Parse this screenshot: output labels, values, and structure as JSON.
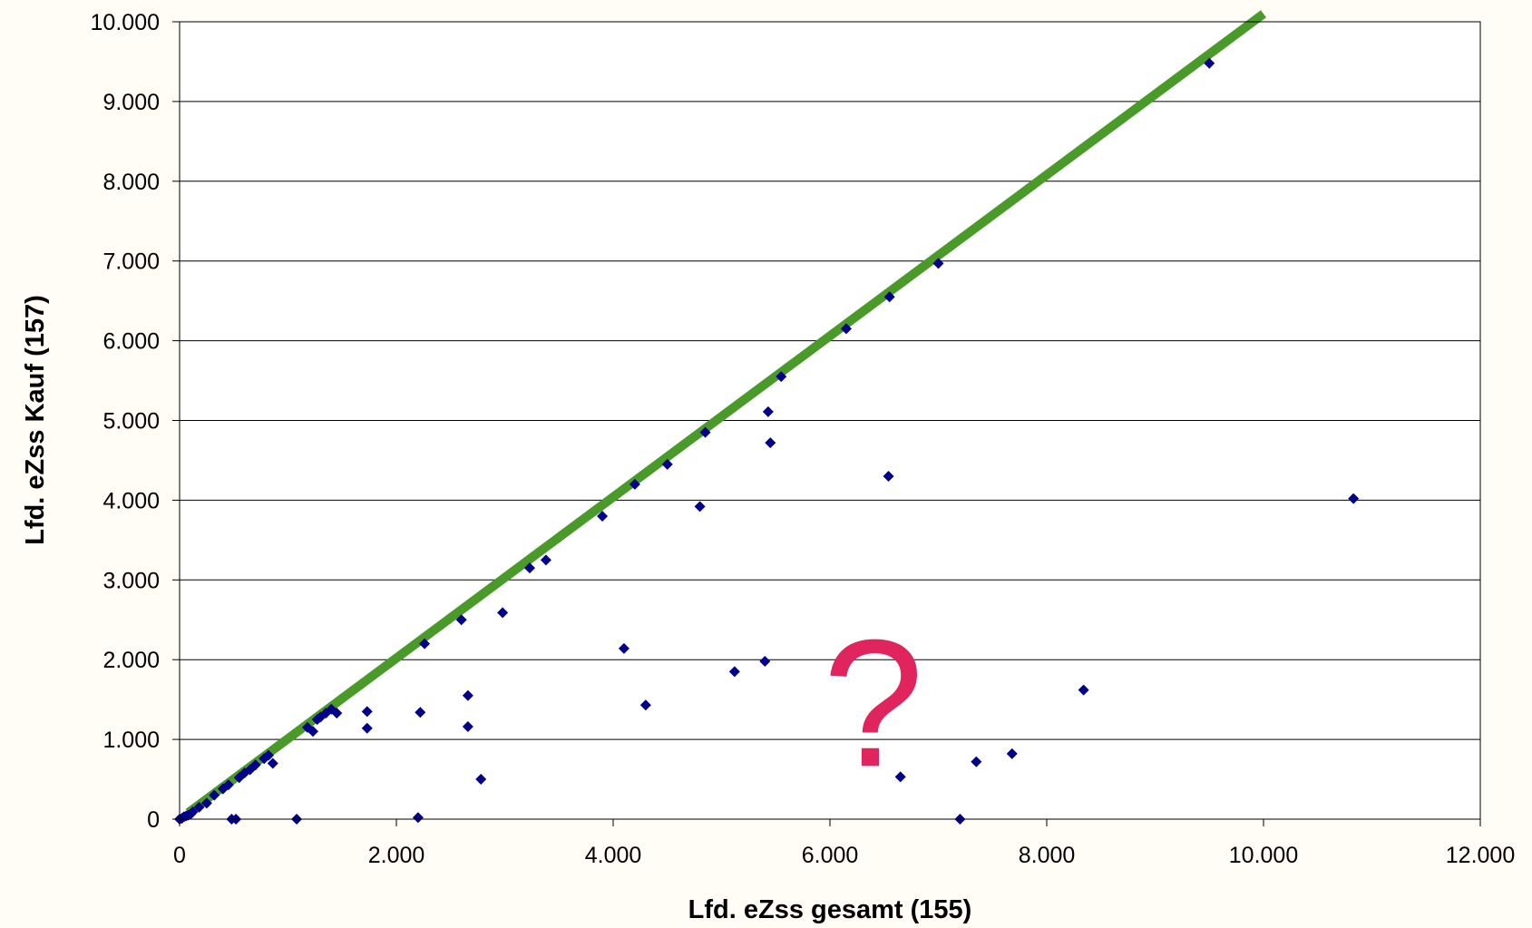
{
  "chart_data": {
    "type": "scatter",
    "xlabel": "Lfd. eZss gesamt (155)",
    "ylabel": "Lfd. eZss Kauf (157)",
    "xlim": [
      0,
      12000
    ],
    "ylim": [
      0,
      10000
    ],
    "x_ticks": [
      {
        "value": 0,
        "label": "0"
      },
      {
        "value": 2000,
        "label": "2.000"
      },
      {
        "value": 4000,
        "label": "4.000"
      },
      {
        "value": 6000,
        "label": "6.000"
      },
      {
        "value": 8000,
        "label": "8.000"
      },
      {
        "value": 10000,
        "label": "10.000"
      },
      {
        "value": 12000,
        "label": "12.000"
      }
    ],
    "y_ticks": [
      {
        "value": 0,
        "label": "0"
      },
      {
        "value": 1000,
        "label": "1.000"
      },
      {
        "value": 2000,
        "label": "2.000"
      },
      {
        "value": 3000,
        "label": "3.000"
      },
      {
        "value": 4000,
        "label": "4.000"
      },
      {
        "value": 5000,
        "label": "5.000"
      },
      {
        "value": 6000,
        "label": "6.000"
      },
      {
        "value": 7000,
        "label": "7.000"
      },
      {
        "value": 8000,
        "label": "8.000"
      },
      {
        "value": 9000,
        "label": "9.000"
      },
      {
        "value": 10000,
        "label": "10.000"
      }
    ],
    "grid": {
      "horizontal": true,
      "vertical": false
    },
    "legend": "none",
    "series": [
      {
        "marker": "diamond",
        "color": "#00008b",
        "points": [
          [
            0,
            0
          ],
          [
            20,
            10
          ],
          [
            40,
            30
          ],
          [
            60,
            40
          ],
          [
            80,
            50
          ],
          [
            100,
            60
          ],
          [
            120,
            90
          ],
          [
            180,
            150
          ],
          [
            250,
            200
          ],
          [
            320,
            300
          ],
          [
            400,
            380
          ],
          [
            450,
            430
          ],
          [
            480,
            0
          ],
          [
            520,
            0
          ],
          [
            550,
            520
          ],
          [
            600,
            580
          ],
          [
            650,
            620
          ],
          [
            700,
            680
          ],
          [
            780,
            760
          ],
          [
            820,
            800
          ],
          [
            860,
            700
          ],
          [
            1080,
            0
          ],
          [
            1180,
            1150
          ],
          [
            1230,
            1100
          ],
          [
            1270,
            1250
          ],
          [
            1300,
            1280
          ],
          [
            1350,
            1330
          ],
          [
            1400,
            1380
          ],
          [
            1450,
            1330
          ],
          [
            1730,
            1350
          ],
          [
            1730,
            1140
          ],
          [
            2200,
            20
          ],
          [
            2220,
            1340
          ],
          [
            2260,
            2200
          ],
          [
            2600,
            2500
          ],
          [
            2660,
            1550
          ],
          [
            2660,
            1160
          ],
          [
            2780,
            500
          ],
          [
            2980,
            2590
          ],
          [
            3230,
            3150
          ],
          [
            3380,
            3250
          ],
          [
            3900,
            3800
          ],
          [
            4100,
            2140
          ],
          [
            4200,
            4200
          ],
          [
            4300,
            1430
          ],
          [
            4500,
            4450
          ],
          [
            4800,
            3920
          ],
          [
            4850,
            4850
          ],
          [
            5120,
            1850
          ],
          [
            5400,
            1980
          ],
          [
            5430,
            5110
          ],
          [
            5450,
            4720
          ],
          [
            5550,
            5550
          ],
          [
            6150,
            6150
          ],
          [
            6540,
            4300
          ],
          [
            6550,
            6550
          ],
          [
            6650,
            530
          ],
          [
            7000,
            6970
          ],
          [
            7200,
            0
          ],
          [
            7350,
            720
          ],
          [
            7680,
            820
          ],
          [
            8340,
            1620
          ],
          [
            9500,
            9480
          ],
          [
            10830,
            4020
          ]
        ]
      }
    ],
    "reference_line": {
      "color": "#4a9a2a",
      "x": [
        80,
        10000
      ],
      "y": [
        80,
        10100
      ]
    },
    "annotation": {
      "text": "?",
      "x": 6400,
      "y": 1350,
      "color": "#e0245e"
    }
  }
}
